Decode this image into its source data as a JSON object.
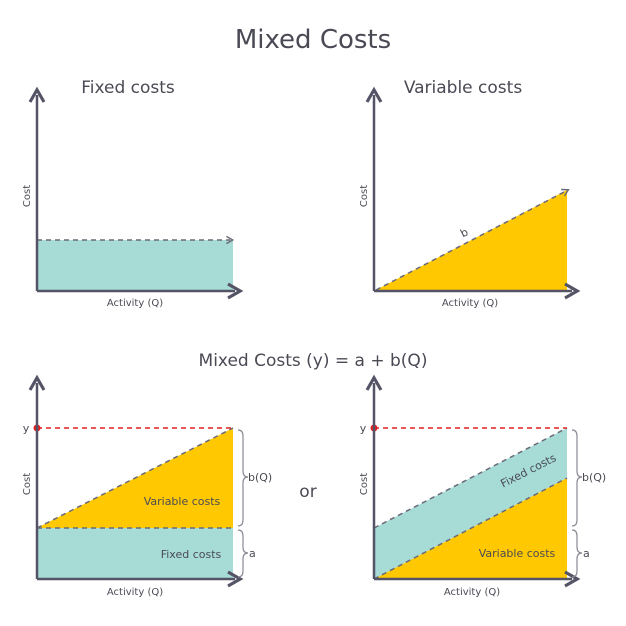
{
  "title": "Mixed Costs",
  "formula": "Mixed Costs (y) = a + b(Q)",
  "or_text": "or",
  "colors": {
    "fixed": "#a6dbd6",
    "variable": "#ffc800",
    "axis": "#545466",
    "dash": "#6a6a78",
    "red": "#e02020",
    "brace": "#8a8a95"
  },
  "panels": {
    "fixed": {
      "title": "Fixed costs",
      "y_label": "Cost",
      "x_label": "Activity (Q)"
    },
    "variable": {
      "title": "Variable costs",
      "y_label": "Cost",
      "x_label": "Activity (Q)",
      "slope_label": "b"
    },
    "mixed_left": {
      "y_label": "Cost",
      "x_label": "Activity (Q)",
      "y_marker": "y",
      "variable_label": "Variable costs",
      "fixed_label": "Fixed costs",
      "brace_top_label": "b(Q)",
      "brace_bottom_label": "a"
    },
    "mixed_right": {
      "y_label": "Cost",
      "x_label": "Activity (Q)",
      "y_marker": "y",
      "variable_label": "Variable costs",
      "fixed_label": "Fixed costs",
      "brace_top_label": "b(Q)",
      "brace_bottom_label": "a"
    }
  }
}
